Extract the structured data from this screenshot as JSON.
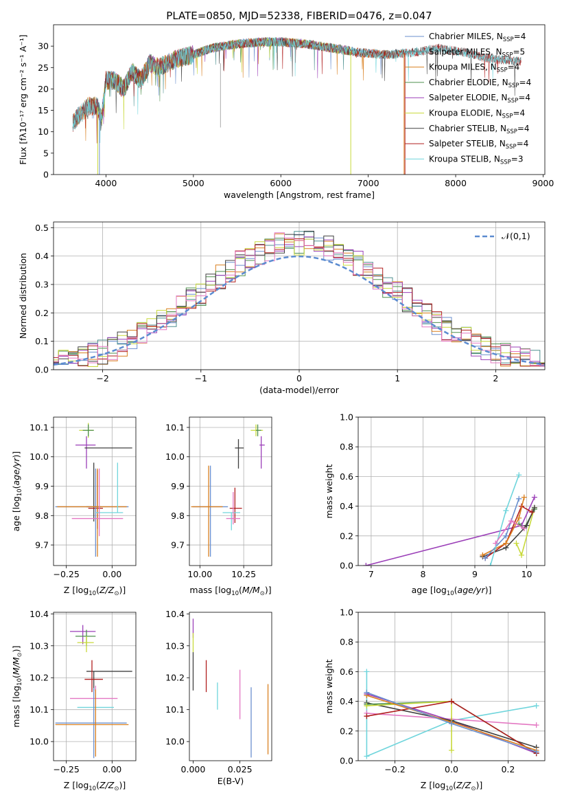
{
  "chart_data": [
    {
      "id": "spectrum",
      "type": "line",
      "title": "PLATE=0850, MJD=52338, FIBERID=0476, z=0.047",
      "xlabel": "wavelength [Angstrom, rest frame]",
      "ylabel": "Flux [f_λ 10^-17 erg cm^-2 s^-1 A^-1]",
      "xlim": [
        3400,
        9020
      ],
      "ylim": [
        0,
        35
      ],
      "xticks": [
        4000,
        5000,
        6000,
        7000,
        8000,
        9000
      ],
      "yticks": [
        0,
        5,
        10,
        15,
        20,
        25,
        30
      ],
      "legend_position": "top-right",
      "series": [
        {
          "name": "Chabrier MILES",
          "nssp": "4",
          "color": "#6a8fce",
          "x_range": [
            3620,
            7400
          ]
        },
        {
          "name": "Salpeter MILES",
          "nssp": "5",
          "color": "#4d8f8f",
          "x_range": [
            3620,
            7400
          ]
        },
        {
          "name": "Kroupa MILES",
          "nssp": "4",
          "color": "#d97f1f",
          "x_range": [
            3620,
            7400
          ]
        },
        {
          "name": "Chabrier ELODIE",
          "nssp": "4",
          "color": "#4e8f4e",
          "x_range": [
            3900,
            6800
          ]
        },
        {
          "name": "Salpeter ELODIE",
          "nssp": "4",
          "color": "#9b3fb8",
          "x_range": [
            3900,
            6800
          ]
        },
        {
          "name": "Kroupa ELODIE",
          "nssp": "4",
          "color": "#c8d93a",
          "x_range": [
            3900,
            6800
          ]
        },
        {
          "name": "Chabrier STELIB",
          "nssp": "4",
          "color": "#404040",
          "x_range": [
            3620,
            8750
          ]
        },
        {
          "name": "Salpeter STELIB",
          "nssp": "4",
          "color": "#b01e1e",
          "x_range": [
            3620,
            8750
          ]
        },
        {
          "name": "Kroupa STELIB",
          "nssp": "3",
          "color": "#6fd5dc",
          "x_range": [
            3620,
            8750
          ]
        }
      ],
      "envelope": {
        "x": [
          3620,
          3700,
          3800,
          3900,
          3950,
          4000,
          4100,
          4200,
          4300,
          4400,
          4500,
          4600,
          4800,
          5000,
          5200,
          5500,
          5800,
          6000,
          6300,
          6600,
          6900,
          7200,
          7500,
          7800,
          8100,
          8400,
          8750
        ],
        "y": [
          12,
          14,
          16,
          16,
          13,
          22,
          22,
          20,
          24,
          22,
          26,
          25,
          27,
          28,
          29.5,
          30.5,
          31,
          31,
          30.5,
          29.5,
          28.5,
          28,
          28.5,
          29.5,
          28.5,
          27,
          26.5
        ]
      }
    },
    {
      "id": "residuals",
      "type": "histogram",
      "xlabel": "(data-model)/error",
      "ylabel": "Normed distribution",
      "xlim": [
        -2.5,
        2.5
      ],
      "ylim": [
        0,
        0.52
      ],
      "xticks": [
        -2,
        -1,
        0,
        1,
        2
      ],
      "yticks": [
        0.0,
        0.1,
        0.2,
        0.3,
        0.4,
        0.5
      ],
      "grid": true,
      "bin_width": 0.1,
      "reference_curve": {
        "name": "𝒩(0,1)",
        "color": "#5b8bd0",
        "style": "dashed"
      },
      "legend_position": "top-right",
      "series_colors": [
        "#6a8fce",
        "#4d8f8f",
        "#d97f1f",
        "#4e8f4e",
        "#9b3fb8",
        "#c8d93a",
        "#404040",
        "#b01e1e",
        "#e377c2"
      ]
    },
    {
      "id": "age-vs-z",
      "type": "scatter",
      "xlabel": "Z [log10(Z/Z☉)]",
      "ylabel": "age [log10(age/yr)]",
      "xlim": [
        -0.32,
        0.13
      ],
      "ylim": [
        9.63,
        10.135
      ],
      "xticks": [
        -0.25,
        0.0
      ],
      "yticks": [
        9.7,
        9.8,
        9.9,
        10.0,
        10.1
      ],
      "grid": true,
      "points": [
        {
          "x": -0.13,
          "y": 10.09,
          "xerr": [
            0.05,
            0.03
          ],
          "yerr": [
            0.025,
            0.025
          ],
          "color": "#c8d93a"
        },
        {
          "x": -0.13,
          "y": 10.09,
          "xerr": [
            0.03,
            0.03
          ],
          "yerr": [
            0.02,
            0.02
          ],
          "color": "#4e8f4e"
        },
        {
          "x": -0.14,
          "y": 10.04,
          "xerr": [
            0.06,
            0.05
          ],
          "yerr": [
            0.08,
            0.03
          ],
          "color": "#9b3fb8"
        },
        {
          "x": -0.09,
          "y": 10.03,
          "xerr": [
            0.06,
            0.2
          ],
          "yerr": [
            0.0,
            0.0
          ],
          "color": "#404040"
        },
        {
          "x": -0.1,
          "y": 9.83,
          "xerr": [
            0.04,
            0.04
          ],
          "yerr": [
            0.05,
            0.15
          ],
          "color": "#404040"
        },
        {
          "x": -0.08,
          "y": 9.825,
          "xerr": [
            0.05,
            0.03
          ],
          "yerr": [
            0.07,
            0.13
          ],
          "color": "#b01e1e"
        },
        {
          "x": -0.09,
          "y": 9.83,
          "xerr": [
            0.22,
            0.18
          ],
          "yerr": [
            0.17,
            0.13
          ],
          "color": "#6a8fce"
        },
        {
          "x": -0.08,
          "y": 9.83,
          "xerr": [
            0.22,
            0.16
          ],
          "yerr": [
            0.17,
            0.13
          ],
          "color": "#d97f1f"
        },
        {
          "x": 0.03,
          "y": 9.81,
          "xerr": [
            0.12,
            0.03
          ],
          "yerr": [
            0.0,
            0.17
          ],
          "color": "#6fd5dc"
        },
        {
          "x": -0.07,
          "y": 9.79,
          "xerr": [
            0.15,
            0.13
          ],
          "yerr": [
            0.06,
            0.17
          ],
          "color": "#e377c2"
        }
      ]
    },
    {
      "id": "age-vs-mass",
      "type": "scatter",
      "xlabel": "mass [log10(M/M☉)]",
      "ylabel": "",
      "xlim": [
        9.94,
        10.41
      ],
      "ylim": [
        9.63,
        10.135
      ],
      "xticks": [
        10.0,
        10.25
      ],
      "yticks": [
        9.7,
        9.8,
        9.9,
        10.0,
        10.1
      ],
      "grid": true,
      "points": [
        {
          "x": 10.32,
          "y": 10.09,
          "xerr": [
            0.03,
            0.04
          ],
          "yerr": [
            0.02,
            0.02
          ],
          "color": "#c8d93a"
        },
        {
          "x": 10.33,
          "y": 10.09,
          "xerr": [
            0.01,
            0.02
          ],
          "yerr": [
            0.02,
            0.02
          ],
          "color": "#4e8f4e"
        },
        {
          "x": 10.35,
          "y": 10.04,
          "xerr": [
            0.01,
            0.02
          ],
          "yerr": [
            0.08,
            0.03
          ],
          "color": "#9b3fb8"
        },
        {
          "x": 10.22,
          "y": 10.03,
          "xerr": [
            0.02,
            0.03
          ],
          "yerr": [
            0.07,
            0.03
          ],
          "color": "#404040"
        },
        {
          "x": 10.2,
          "y": 9.825,
          "xerr": [
            0.03,
            0.04
          ],
          "yerr": [
            0.05,
            0.07
          ],
          "color": "#b01e1e"
        },
        {
          "x": 10.06,
          "y": 9.83,
          "xerr": [
            0.1,
            0.1
          ],
          "yerr": [
            0.17,
            0.14
          ],
          "color": "#6a8fce"
        },
        {
          "x": 10.05,
          "y": 9.83,
          "xerr": [
            0.1,
            0.08
          ],
          "yerr": [
            0.17,
            0.14
          ],
          "color": "#d97f1f"
        },
        {
          "x": 10.18,
          "y": 9.81,
          "xerr": [
            0.05,
            0.05
          ],
          "yerr": [
            0.06,
            0.0
          ],
          "color": "#6fd5dc"
        },
        {
          "x": 10.19,
          "y": 9.79,
          "xerr": [
            0.04,
            0.04
          ],
          "yerr": [
            0.02,
            0.09
          ],
          "color": "#e377c2"
        }
      ]
    },
    {
      "id": "weight-vs-age",
      "type": "line",
      "xlabel": "age [log10(age/yr)]",
      "ylabel": "mass weight",
      "xlim": [
        6.75,
        10.35
      ],
      "ylim": [
        0,
        1.0
      ],
      "xticks": [
        7,
        8,
        9,
        10
      ],
      "yticks": [
        0.0,
        0.2,
        0.4,
        0.6,
        0.8,
        1.0
      ],
      "grid": true,
      "series": [
        {
          "color": "#9b3fb8",
          "x": [
            6.9,
            9.9,
            10.15
          ],
          "y": [
            0.0,
            0.27,
            0.46
          ]
        },
        {
          "color": "#c8d93a",
          "x": [
            9.8,
            9.9,
            10.15
          ],
          "y": [
            0.15,
            0.07,
            0.39
          ]
        },
        {
          "color": "#4e8f4e",
          "x": [
            9.85,
            9.95,
            10.15
          ],
          "y": [
            0.28,
            0.25,
            0.38
          ]
        },
        {
          "color": "#404040",
          "x": [
            9.15,
            9.6,
            10.0,
            10.15
          ],
          "y": [
            0.06,
            0.12,
            0.27,
            0.39
          ]
        },
        {
          "color": "#b01e1e",
          "x": [
            9.2,
            9.6,
            9.9,
            10.1
          ],
          "y": [
            0.05,
            0.15,
            0.4,
            0.36
          ]
        },
        {
          "color": "#d97f1f",
          "x": [
            9.15,
            9.6,
            9.85,
            9.95
          ],
          "y": [
            0.07,
            0.15,
            0.32,
            0.46
          ]
        },
        {
          "color": "#6a8fce",
          "x": [
            9.2,
            9.6,
            9.85
          ],
          "y": [
            0.05,
            0.2,
            0.45
          ]
        },
        {
          "color": "#6fd5dc",
          "x": [
            9.3,
            9.6,
            9.85
          ],
          "y": [
            0.0,
            0.37,
            0.61
          ]
        },
        {
          "color": "#e377c2",
          "x": [
            9.4,
            9.7,
            9.95
          ],
          "y": [
            0.15,
            0.3,
            0.25
          ]
        }
      ]
    },
    {
      "id": "mass-vs-z",
      "type": "scatter",
      "xlabel": "Z [log10(Z/Z☉)]",
      "ylabel": "mass [log10(M/M☉)]",
      "xlim": [
        -0.32,
        0.13
      ],
      "ylim": [
        9.94,
        10.405
      ],
      "xticks": [
        -0.25,
        0.0
      ],
      "yticks": [
        10.0,
        10.1,
        10.2,
        10.3,
        10.4
      ],
      "grid": true,
      "points": [
        {
          "x": -0.16,
          "y": 10.345,
          "xerr": [
            0.07,
            0.07
          ],
          "yerr": [
            0.04,
            0.02
          ],
          "color": "#9b3fb8"
        },
        {
          "x": -0.14,
          "y": 10.33,
          "xerr": [
            0.06,
            0.05
          ],
          "yerr": [
            0.03,
            0.02
          ],
          "color": "#4e8f4e"
        },
        {
          "x": -0.14,
          "y": 10.31,
          "xerr": [
            0.05,
            0.04
          ],
          "yerr": [
            0.03,
            0.02
          ],
          "color": "#c8d93a"
        },
        {
          "x": -0.1,
          "y": 10.22,
          "xerr": [
            0.04,
            0.21
          ],
          "yerr": [
            0.06,
            0.0
          ],
          "color": "#404040"
        },
        {
          "x": -0.11,
          "y": 10.195,
          "xerr": [
            0.04,
            0.06
          ],
          "yerr": [
            0.04,
            0.06
          ],
          "color": "#b01e1e"
        },
        {
          "x": -0.09,
          "y": 10.135,
          "xerr": [
            0.14,
            0.12
          ],
          "yerr": [
            0.0,
            0.04
          ],
          "color": "#e377c2"
        },
        {
          "x": -0.09,
          "y": 10.107,
          "xerr": [
            0.1,
            0.1
          ],
          "yerr": [
            0.0,
            0.0
          ],
          "color": "#6fd5dc"
        },
        {
          "x": -0.1,
          "y": 10.058,
          "xerr": [
            0.21,
            0.18
          ],
          "yerr": [
            0.11,
            0.11
          ],
          "color": "#6a8fce"
        },
        {
          "x": -0.09,
          "y": 10.053,
          "xerr": [
            0.22,
            0.18
          ],
          "yerr": [
            0.1,
            0.11
          ],
          "color": "#d97f1f"
        }
      ]
    },
    {
      "id": "mass-vs-ebv",
      "type": "scatter",
      "xlabel": "E(B-V)",
      "ylabel": "",
      "xlim": [
        -0.002,
        0.042
      ],
      "ylim": [
        9.94,
        10.405
      ],
      "xticks": [
        0.0,
        0.025
      ],
      "tick_labels": [
        "0.000",
        "0.025"
      ],
      "yticks": [
        10.0,
        10.1,
        10.2,
        10.3,
        10.4
      ],
      "grid": false,
      "points": [
        {
          "x": 0.0,
          "y": 10.345,
          "yerr": [
            0.02,
            0.04
          ],
          "color": "#9b3fb8"
        },
        {
          "x": 0.0,
          "y": 10.31,
          "yerr": [
            0.03,
            0.03
          ],
          "color": "#c8d93a"
        },
        {
          "x": 0.0,
          "y": 10.22,
          "yerr": [
            0.06,
            0.06
          ],
          "color": "#404040"
        },
        {
          "x": 0.007,
          "y": 10.205,
          "yerr": [
            0.05,
            0.05
          ],
          "color": "#b01e1e"
        },
        {
          "x": 0.013,
          "y": 10.14,
          "yerr": [
            0.04,
            0.045
          ],
          "color": "#6fd5dc"
        },
        {
          "x": 0.025,
          "y": 10.14,
          "yerr": [
            0.07,
            0.085
          ],
          "color": "#e377c2"
        },
        {
          "x": 0.031,
          "y": 10.06,
          "yerr": [
            0.11,
            0.11
          ],
          "color": "#6a8fce"
        },
        {
          "x": 0.04,
          "y": 10.07,
          "yerr": [
            0.11,
            0.11
          ],
          "color": "#d97f1f"
        }
      ]
    },
    {
      "id": "weight-vs-z",
      "type": "line",
      "xlabel": "Z [log10(Z/Z☉)]",
      "ylabel": "mass weight",
      "xlim": [
        -0.33,
        0.33
      ],
      "ylim": [
        0,
        1.0
      ],
      "xticks": [
        -0.2,
        0.0,
        0.2
      ],
      "yticks": [
        0.0,
        0.2,
        0.4,
        0.6,
        0.8,
        1.0
      ],
      "grid": true,
      "series": [
        {
          "color": "#6fd5dc",
          "x": [
            -0.3,
            -0.3,
            0.0,
            0.3
          ],
          "y": [
            0.6,
            0.03,
            0.27,
            0.37
          ]
        },
        {
          "color": "#e377c2",
          "x": [
            -0.3,
            0.0,
            0.3
          ],
          "y": [
            0.32,
            0.28,
            0.24
          ]
        },
        {
          "color": "#9b3fb8",
          "x": [
            -0.3,
            0.0,
            0.3
          ],
          "y": [
            0.45,
            0.27,
            0.05
          ]
        },
        {
          "color": "#404040",
          "x": [
            -0.3,
            0.0,
            0.3
          ],
          "y": [
            0.39,
            0.27,
            0.09
          ]
        },
        {
          "color": "#4e8f4e",
          "x": [
            -0.3,
            0.0,
            0.3
          ],
          "y": [
            0.38,
            0.4,
            0.05
          ]
        },
        {
          "color": "#c8d93a",
          "x": [
            -0.3,
            0.0,
            0.0
          ],
          "y": [
            0.37,
            0.4,
            0.07
          ]
        },
        {
          "color": "#b01e1e",
          "x": [
            -0.3,
            0.0,
            0.3
          ],
          "y": [
            0.3,
            0.4,
            0.05
          ]
        },
        {
          "color": "#d97f1f",
          "x": [
            -0.3,
            0.0,
            0.3
          ],
          "y": [
            0.44,
            0.26,
            0.07
          ]
        },
        {
          "color": "#6a8fce",
          "x": [
            -0.3,
            0.0,
            0.3
          ],
          "y": [
            0.46,
            0.25,
            0.06
          ]
        }
      ]
    }
  ]
}
